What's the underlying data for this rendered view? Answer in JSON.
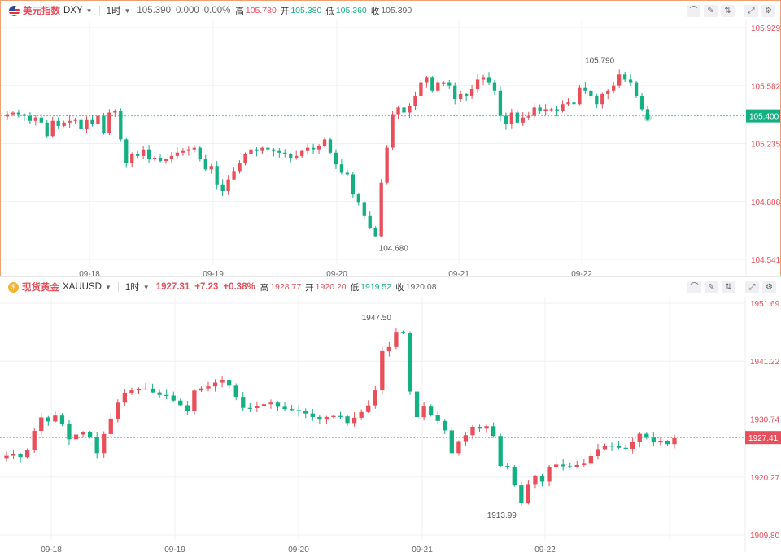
{
  "dxy": {
    "name_cn": "美元指数",
    "code": "DXY",
    "interval": "1时",
    "price": "105.390",
    "change": "0.000",
    "change_pct": "0.00%",
    "high_label": "高",
    "high": "105.780",
    "open_label": "开",
    "open": "105.380",
    "low_label": "低",
    "low": "105.360",
    "close_label": "收",
    "close": "105.390",
    "y_ticks": [
      "105.929",
      "105.582",
      "105.235",
      "104.888",
      "104.541"
    ],
    "y_tick_values": [
      105.929,
      105.582,
      105.235,
      104.888,
      104.541
    ],
    "last_price": "105.400",
    "last_value": 105.4,
    "x_ticks": [
      "09-18",
      "09-19",
      "09-20",
      "09-21",
      "09-22"
    ],
    "hi_annot": "105.790",
    "lo_annot": "104.680",
    "colors": {
      "up": "#e84f5b",
      "down": "#14b084",
      "last_line": "#14b084"
    }
  },
  "xau": {
    "name_cn": "现货黄金",
    "code": "XAUUSD",
    "interval": "1时",
    "price": "1927.31",
    "change": "+7.23",
    "change_pct": "+0.38%",
    "high_label": "高",
    "high": "1928.77",
    "open_label": "开",
    "open": "1920.20",
    "low_label": "低",
    "low": "1919.52",
    "close_label": "收",
    "close": "1920.08",
    "y_ticks": [
      "1951.69",
      "1941.22",
      "1930.74",
      "1920.27",
      "1909.80"
    ],
    "y_tick_values": [
      1951.69,
      1941.22,
      1930.74,
      1920.27,
      1909.8
    ],
    "last_price": "1927.41",
    "last_value": 1927.41,
    "x_ticks": [
      "09-18",
      "09-19",
      "09-20",
      "09-21",
      "09-22"
    ],
    "hi_annot": "1947.50",
    "lo_annot": "1913.99",
    "colors": {
      "up": "#e84f5b",
      "down": "#14b084",
      "last_line": "#e84f5b"
    }
  },
  "tools": [
    "indicator-icon",
    "draw-icon",
    "compare-icon",
    "expand-icon",
    "settings-icon"
  ],
  "chart_data": [
    {
      "type": "candlestick",
      "title": "美元指数 DXY",
      "interval": "1时",
      "ylim": [
        104.541,
        105.929
      ],
      "x_ticks": [
        "09-18",
        "09-19",
        "09-20",
        "09-21",
        "09-22"
      ],
      "closes": [
        105.41,
        105.42,
        105.41,
        105.4,
        105.37,
        105.39,
        105.36,
        105.28,
        105.37,
        105.34,
        105.36,
        105.37,
        105.38,
        105.32,
        105.38,
        105.35,
        105.4,
        105.3,
        105.42,
        105.43,
        105.26,
        105.12,
        105.17,
        105.16,
        105.2,
        105.14,
        105.15,
        105.13,
        105.14,
        105.16,
        105.18,
        105.19,
        105.2,
        105.21,
        105.14,
        105.08,
        105.1,
        104.99,
        104.95,
        105.02,
        105.07,
        105.12,
        105.17,
        105.2,
        105.19,
        105.21,
        105.2,
        105.19,
        105.18,
        105.17,
        105.15,
        105.16,
        105.19,
        105.21,
        105.2,
        105.22,
        105.26,
        105.18,
        105.11,
        105.06,
        105.05,
        104.93,
        104.88,
        104.8,
        104.73,
        104.68,
        105.0,
        105.21,
        105.41,
        105.45,
        105.42,
        105.46,
        105.52,
        105.6,
        105.63,
        105.55,
        105.6,
        105.6,
        105.58,
        105.5,
        105.53,
        105.52,
        105.56,
        105.62,
        105.63,
        105.6,
        105.55,
        105.4,
        105.35,
        105.42,
        105.36,
        105.39,
        105.4,
        105.45,
        105.43,
        105.44,
        105.44,
        105.43,
        105.47,
        105.48,
        105.47,
        105.57,
        105.55,
        105.52,
        105.47,
        105.53,
        105.55,
        105.58,
        105.65,
        105.62,
        105.6,
        105.52,
        105.44,
        105.39
      ]
    },
    {
      "type": "candlestick",
      "title": "现货黄金 XAUUSD",
      "interval": "1时",
      "ylim": [
        1909.8,
        1951.69
      ],
      "x_ticks": [
        "09-18",
        "09-19",
        "09-20",
        "09-21",
        "09-22"
      ],
      "closes": [
        1924.12,
        1924.35,
        1923.88,
        1925.08,
        1928.61,
        1931.05,
        1930.31,
        1931.38,
        1929.86,
        1927.1,
        1927.95,
        1928.34,
        1927.47,
        1924.6,
        1928.04,
        1930.83,
        1933.72,
        1935.5,
        1935.95,
        1936.15,
        1936.28,
        1935.58,
        1935.11,
        1935.01,
        1934.09,
        1933.25,
        1932.17,
        1935.92,
        1936.31,
        1936.67,
        1937.36,
        1937.72,
        1936.79,
        1934.77,
        1932.77,
        1932.73,
        1933.15,
        1933.44,
        1933.72,
        1932.96,
        1932.56,
        1932.37,
        1932.14,
        1931.75,
        1931.12,
        1930.64,
        1931.1,
        1931.31,
        1931.23,
        1930.03,
        1930.99,
        1932.02,
        1933.22,
        1935.95,
        1943.03,
        1943.77,
        1946.52,
        1946.28,
        1935.73,
        1931.1,
        1933.0,
        1931.5,
        1930.4,
        1928.7,
        1924.6,
        1926.62,
        1927.84,
        1929.35,
        1929.01,
        1929.46,
        1927.7,
        1922.28,
        1922.14,
        1918.75,
        1915.51,
        1919.0,
        1920.42,
        1919.43,
        1922.0,
        1922.53,
        1922.23,
        1922.12,
        1922.45,
        1922.68,
        1924.06,
        1925.32,
        1925.95,
        1925.82,
        1925.56,
        1925.39,
        1926.56,
        1928.09,
        1927.38,
        1926.54,
        1926.7,
        1926.23,
        1927.31
      ]
    }
  ]
}
